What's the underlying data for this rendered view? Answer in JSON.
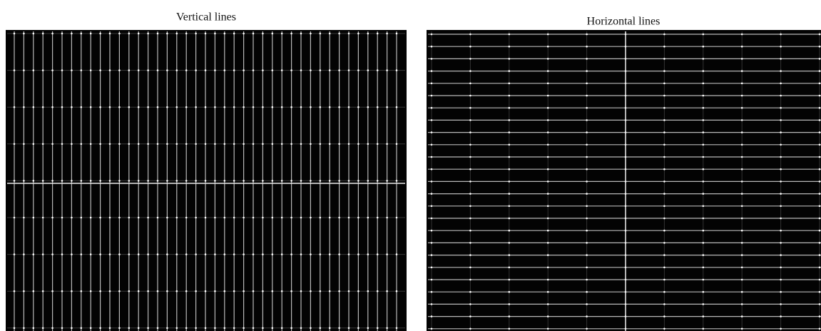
{
  "panels": [
    {
      "title": "Vertical lines"
    },
    {
      "title": "Horizontal lines"
    }
  ]
}
